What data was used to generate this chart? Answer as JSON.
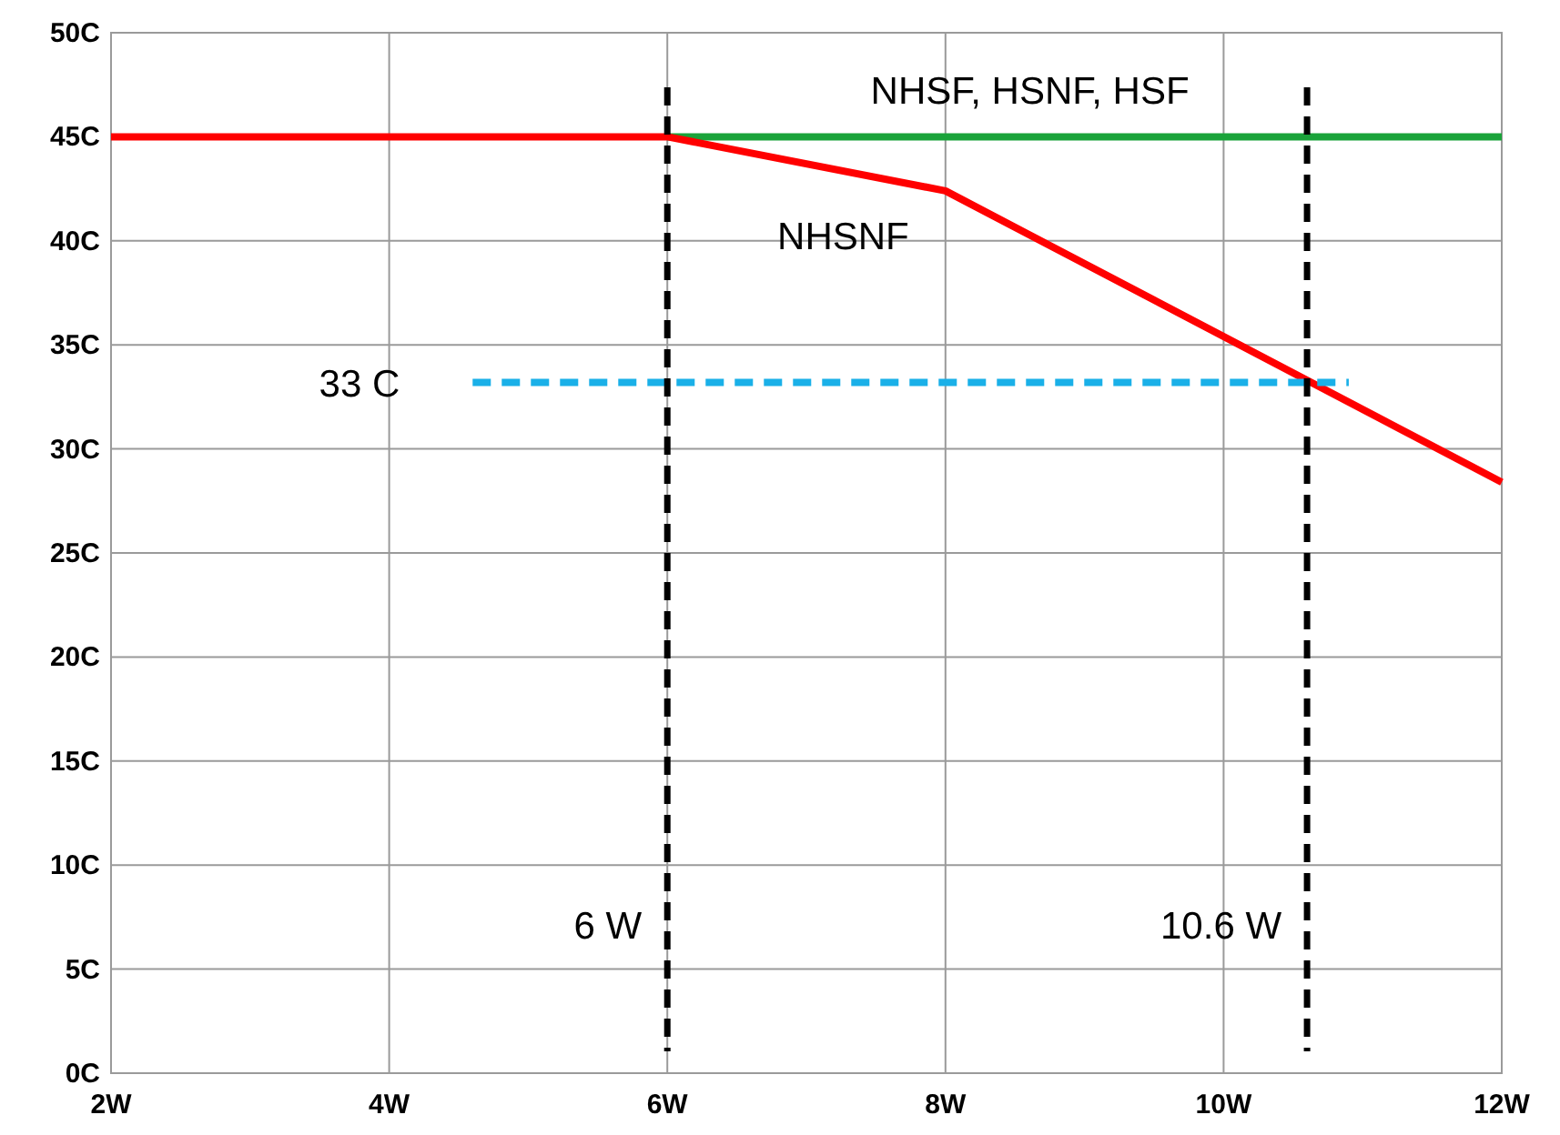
{
  "chart_data": {
    "type": "line",
    "xlim": [
      2,
      12
    ],
    "ylim": [
      0,
      50
    ],
    "xticks": [
      {
        "value": 2,
        "label": "2W"
      },
      {
        "value": 4,
        "label": "4W"
      },
      {
        "value": 6,
        "label": "6W"
      },
      {
        "value": 8,
        "label": "8W"
      },
      {
        "value": 10,
        "label": "10W"
      },
      {
        "value": 12,
        "label": "12W"
      }
    ],
    "yticks": [
      {
        "value": 0,
        "label": "0C"
      },
      {
        "value": 5,
        "label": "5C"
      },
      {
        "value": 10,
        "label": "10C"
      },
      {
        "value": 15,
        "label": "15C"
      },
      {
        "value": 20,
        "label": "20C"
      },
      {
        "value": 25,
        "label": "25C"
      },
      {
        "value": 30,
        "label": "30C"
      },
      {
        "value": 35,
        "label": "35C"
      },
      {
        "value": 40,
        "label": "40C"
      },
      {
        "value": 45,
        "label": "45C"
      },
      {
        "value": 50,
        "label": "50C"
      }
    ],
    "grid": true,
    "series": [
      {
        "name": "NHSF, HSNF, HSF",
        "color": "#1aa33a",
        "x": [
          6,
          12
        ],
        "values": [
          45,
          45
        ]
      },
      {
        "name": "NHSNF",
        "color": "#ff0000",
        "x": [
          2,
          6,
          8,
          12
        ],
        "values": [
          45,
          45,
          42.4,
          28.4
        ]
      },
      {
        "name": "33 C",
        "color": "#1ab0e8",
        "x": [
          4.6,
          10.9
        ],
        "values": [
          33.2,
          33.2
        ],
        "line_style": "dashed"
      }
    ],
    "ref_lines": [
      {
        "axis": "x",
        "value": 6,
        "label": "6 W",
        "color": "#000000",
        "line_style": "dashed"
      },
      {
        "axis": "x",
        "value": 10.6,
        "label": "10.6 W",
        "color": "#000000",
        "line_style": "dashed"
      }
    ]
  }
}
